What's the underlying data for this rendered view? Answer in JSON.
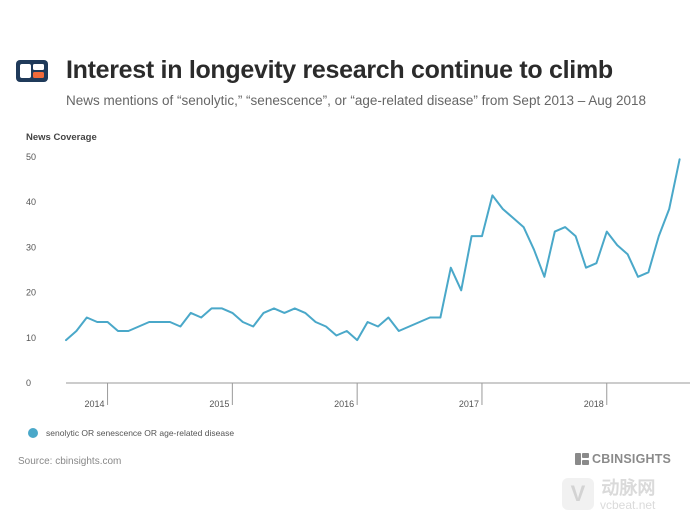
{
  "header": {
    "title": "Interest in longevity research continue to climb",
    "subtitle": "News mentions of “senolytic,” “senescence”, or “age-related disease” from Sept 2013 – Aug 2018"
  },
  "colors": {
    "line": "#4aa8c9",
    "logo_dark": "#1f3a5a",
    "logo_orange": "#f16a3a",
    "axis": "#9a9a9a"
  },
  "footer": {
    "source": "Source: cbinsights.com",
    "brand": "CBINSIGHTS",
    "watermark_badge": "V",
    "watermark_cn": "动脉网",
    "watermark_url": "vcbeat.net"
  },
  "chart_data": {
    "type": "line",
    "title": "Interest in longevity research continue to climb",
    "ylabel": "News Coverage",
    "xlabel": "",
    "ylim": [
      0,
      50
    ],
    "yticks": [
      0,
      10,
      20,
      30,
      40,
      50
    ],
    "xlim": [
      2013.667,
      2018.667
    ],
    "xticks": [
      {
        "label": "2014",
        "year_start": 2014
      },
      {
        "label": "2015",
        "year_start": 2015
      },
      {
        "label": "2016",
        "year_start": 2016
      },
      {
        "label": "2017",
        "year_start": 2017
      },
      {
        "label": "2018",
        "year_start": 2018
      }
    ],
    "grid": false,
    "legend_position": "bottom-left",
    "series": [
      {
        "name": "senolytic OR senescence OR age-related disease",
        "x": [
          "2013-09",
          "2013-10",
          "2013-11",
          "2013-12",
          "2014-01",
          "2014-02",
          "2014-03",
          "2014-04",
          "2014-05",
          "2014-06",
          "2014-07",
          "2014-08",
          "2014-09",
          "2014-10",
          "2014-11",
          "2014-12",
          "2015-01",
          "2015-02",
          "2015-03",
          "2015-04",
          "2015-05",
          "2015-06",
          "2015-07",
          "2015-08",
          "2015-09",
          "2015-10",
          "2015-11",
          "2015-12",
          "2016-01",
          "2016-02",
          "2016-03",
          "2016-04",
          "2016-05",
          "2016-06",
          "2016-07",
          "2016-08",
          "2016-09",
          "2016-10",
          "2016-11",
          "2016-12",
          "2017-01",
          "2017-02",
          "2017-03",
          "2017-04",
          "2017-05",
          "2017-06",
          "2017-07",
          "2017-08",
          "2017-09",
          "2017-10",
          "2017-11",
          "2017-12",
          "2018-01",
          "2018-02",
          "2018-03",
          "2018-04",
          "2018-05",
          "2018-06",
          "2018-07",
          "2018-08"
        ],
        "values": [
          9.5,
          11.5,
          14.5,
          13.5,
          13.5,
          11.5,
          11.5,
          12.5,
          13.5,
          13.5,
          13.5,
          12.5,
          15.5,
          14.5,
          16.5,
          16.5,
          15.5,
          13.5,
          12.5,
          15.5,
          16.5,
          15.5,
          16.5,
          15.5,
          13.5,
          12.5,
          10.5,
          11.5,
          9.5,
          13.5,
          12.5,
          14.5,
          11.5,
          12.5,
          13.5,
          14.5,
          14.5,
          25.5,
          20.5,
          32.5,
          32.5,
          41.5,
          38.5,
          36.5,
          34.5,
          29.5,
          23.5,
          33.5,
          34.5,
          32.5,
          25.5,
          26.5,
          33.5,
          30.5,
          28.5,
          23.5,
          24.5,
          32.5,
          38.5,
          49.5
        ]
      }
    ]
  }
}
